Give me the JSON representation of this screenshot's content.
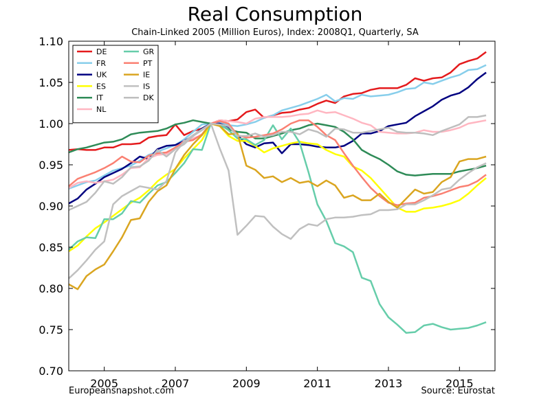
{
  "header": {
    "title": "Real Consumption",
    "subtitle": "Chain-Linked 2005 (Million Euros), Index: 2008Q1, Quarterly, SA"
  },
  "footer": {
    "left": "Europeansnapshot.com",
    "right": "Source: Eurostat"
  },
  "chart_data": {
    "type": "line",
    "title": "Real Consumption",
    "subtitle": "Chain-Linked 2005 (Million Euros), Index: 2008Q1, Quarterly, SA",
    "xlabel": "",
    "ylabel": "",
    "xlim": [
      "2004Q1",
      "2016Q1"
    ],
    "ylim": [
      0.7,
      1.1
    ],
    "x_ticks": [
      "2005",
      "2007",
      "2009",
      "2011",
      "2013",
      "2015"
    ],
    "y_ticks": [
      "0.70",
      "0.75",
      "0.80",
      "0.85",
      "0.90",
      "0.95",
      "1.00",
      "1.05",
      "1.10"
    ],
    "grid": false,
    "legend_position": "top-left",
    "x": [
      "2004Q1",
      "2004Q2",
      "2004Q3",
      "2004Q4",
      "2005Q1",
      "2005Q2",
      "2005Q3",
      "2005Q4",
      "2006Q1",
      "2006Q2",
      "2006Q3",
      "2006Q4",
      "2007Q1",
      "2007Q2",
      "2007Q3",
      "2007Q4",
      "2008Q1",
      "2008Q2",
      "2008Q3",
      "2008Q4",
      "2009Q1",
      "2009Q2",
      "2009Q3",
      "2009Q4",
      "2010Q1",
      "2010Q2",
      "2010Q3",
      "2010Q4",
      "2011Q1",
      "2011Q2",
      "2011Q3",
      "2011Q4",
      "2012Q1",
      "2012Q2",
      "2012Q3",
      "2012Q4",
      "2013Q1",
      "2013Q2",
      "2013Q3",
      "2013Q4",
      "2014Q1",
      "2014Q2",
      "2014Q3",
      "2014Q4",
      "2015Q1",
      "2015Q2",
      "2015Q3",
      "2015Q4"
    ],
    "series": [
      {
        "name": "DE",
        "color": "#e41a1c",
        "values": [
          0.968,
          0.969,
          0.968,
          0.968,
          0.971,
          0.971,
          0.975,
          0.975,
          0.976,
          0.983,
          0.985,
          0.986,
          0.999,
          0.986,
          0.991,
          0.994,
          1.0,
          1.004,
          1.003,
          1.005,
          1.014,
          1.017,
          1.007,
          1.01,
          1.013,
          1.014,
          1.017,
          1.019,
          1.024,
          1.028,
          1.025,
          1.033,
          1.036,
          1.037,
          1.041,
          1.043,
          1.043,
          1.043,
          1.047,
          1.055,
          1.052,
          1.055,
          1.056,
          1.062,
          1.072,
          1.076,
          1.079,
          1.087
        ]
      },
      {
        "name": "FR",
        "color": "#87ceeb",
        "values": [
          0.921,
          0.925,
          0.929,
          0.931,
          0.937,
          0.943,
          0.946,
          0.949,
          0.955,
          0.962,
          0.966,
          0.97,
          0.974,
          0.981,
          0.99,
          0.999,
          1.0,
          1.001,
          0.998,
          0.997,
          0.999,
          1.002,
          1.007,
          1.01,
          1.016,
          1.019,
          1.022,
          1.026,
          1.03,
          1.035,
          1.027,
          1.031,
          1.03,
          1.035,
          1.033,
          1.034,
          1.035,
          1.038,
          1.042,
          1.043,
          1.05,
          1.048,
          1.052,
          1.056,
          1.059,
          1.065,
          1.066,
          1.071
        ]
      },
      {
        "name": "UK",
        "color": "#000080",
        "values": [
          0.903,
          0.909,
          0.92,
          0.927,
          0.935,
          0.94,
          0.945,
          0.952,
          0.96,
          0.957,
          0.969,
          0.973,
          0.974,
          0.979,
          0.985,
          0.994,
          1.0,
          1.0,
          0.996,
          0.986,
          0.975,
          0.971,
          0.976,
          0.977,
          0.964,
          0.975,
          0.975,
          0.974,
          0.972,
          0.971,
          0.971,
          0.973,
          0.979,
          0.988,
          0.988,
          0.991,
          0.997,
          0.999,
          1.001,
          1.009,
          1.015,
          1.021,
          1.029,
          1.034,
          1.037,
          1.044,
          1.054,
          1.062
        ]
      },
      {
        "name": "ES",
        "color": "#ffff00",
        "values": [
          0.845,
          0.852,
          0.863,
          0.873,
          0.88,
          0.888,
          0.896,
          0.904,
          0.91,
          0.919,
          0.93,
          0.938,
          0.945,
          0.958,
          0.969,
          0.98,
          1.0,
          0.997,
          0.985,
          0.979,
          0.979,
          0.973,
          0.965,
          0.97,
          0.973,
          0.976,
          0.978,
          0.976,
          0.975,
          0.968,
          0.963,
          0.96,
          0.948,
          0.943,
          0.934,
          0.922,
          0.91,
          0.898,
          0.893,
          0.893,
          0.897,
          0.898,
          0.9,
          0.903,
          0.907,
          0.915,
          0.925,
          0.934
        ]
      },
      {
        "name": "IT",
        "color": "#2e8b57",
        "values": [
          0.965,
          0.969,
          0.971,
          0.974,
          0.977,
          0.978,
          0.981,
          0.987,
          0.989,
          0.99,
          0.991,
          0.994,
          0.999,
          1.001,
          1.004,
          1.002,
          1.0,
          0.998,
          0.993,
          0.99,
          0.989,
          0.982,
          0.982,
          0.985,
          0.988,
          0.992,
          0.994,
          0.998,
          1.0,
          0.998,
          0.996,
          0.99,
          0.981,
          0.968,
          0.962,
          0.957,
          0.95,
          0.942,
          0.938,
          0.937,
          0.938,
          0.939,
          0.939,
          0.939,
          0.942,
          0.944,
          0.946,
          0.949
        ]
      },
      {
        "name": "NL",
        "color": "#ffb6c1",
        "values": [
          0.922,
          0.928,
          0.93,
          0.928,
          0.93,
          0.932,
          0.938,
          0.946,
          0.947,
          0.958,
          0.962,
          0.963,
          0.97,
          0.979,
          0.982,
          0.986,
          1.0,
          1.004,
          1.003,
          1.002,
          1.0,
          1.006,
          1.008,
          1.008,
          1.008,
          1.009,
          1.011,
          1.012,
          1.016,
          1.013,
          1.014,
          1.01,
          1.006,
          1.001,
          0.998,
          0.99,
          0.989,
          0.988,
          0.988,
          0.989,
          0.992,
          0.99,
          0.99,
          0.992,
          0.995,
          1.0,
          1.002,
          1.004
        ]
      },
      {
        "name": "GR",
        "color": "#66cdaa",
        "values": [
          0.847,
          0.857,
          0.862,
          0.861,
          0.884,
          0.884,
          0.891,
          0.906,
          0.904,
          0.915,
          0.925,
          0.929,
          0.94,
          0.952,
          0.969,
          0.968,
          1.0,
          0.999,
          0.992,
          0.982,
          0.981,
          0.974,
          0.98,
          0.998,
          0.981,
          0.994,
          0.977,
          0.941,
          0.902,
          0.882,
          0.855,
          0.851,
          0.844,
          0.813,
          0.809,
          0.781,
          0.765,
          0.756,
          0.746,
          0.747,
          0.755,
          0.757,
          0.753,
          0.75,
          0.751,
          0.752,
          0.755,
          0.759
        ]
      },
      {
        "name": "PT",
        "color": "#fa8072",
        "values": [
          0.924,
          0.933,
          0.937,
          0.941,
          0.946,
          0.952,
          0.96,
          0.954,
          0.953,
          0.961,
          0.964,
          0.965,
          0.971,
          0.978,
          0.98,
          0.987,
          1.0,
          1.003,
          1.0,
          0.986,
          0.983,
          0.984,
          0.986,
          0.988,
          0.993,
          1.0,
          1.004,
          1.004,
          0.996,
          0.986,
          0.98,
          0.964,
          0.949,
          0.935,
          0.922,
          0.912,
          0.904,
          0.901,
          0.903,
          0.904,
          0.91,
          0.912,
          0.915,
          0.919,
          0.923,
          0.925,
          0.93,
          0.938
        ]
      },
      {
        "name": "IE",
        "color": "#daa520",
        "values": [
          0.805,
          0.799,
          0.815,
          0.823,
          0.829,
          0.845,
          0.862,
          0.883,
          0.885,
          0.905,
          0.918,
          0.925,
          0.945,
          0.962,
          0.975,
          0.986,
          1.0,
          0.997,
          0.987,
          0.988,
          0.949,
          0.944,
          0.934,
          0.936,
          0.929,
          0.934,
          0.928,
          0.93,
          0.924,
          0.931,
          0.925,
          0.91,
          0.913,
          0.907,
          0.907,
          0.915,
          0.905,
          0.898,
          0.909,
          0.92,
          0.915,
          0.917,
          0.929,
          0.935,
          0.954,
          0.957,
          0.957,
          0.96
        ]
      },
      {
        "name": "IS",
        "color": "#c0c0c0",
        "values": [
          0.812,
          0.822,
          0.834,
          0.847,
          0.857,
          0.902,
          0.912,
          0.918,
          0.924,
          0.922,
          0.92,
          0.93,
          0.965,
          0.978,
          0.986,
          0.993,
          1.0,
          0.97,
          0.943,
          0.865,
          0.876,
          0.888,
          0.887,
          0.875,
          0.866,
          0.86,
          0.872,
          0.878,
          0.876,
          0.884,
          0.886,
          0.886,
          0.887,
          0.889,
          0.89,
          0.895,
          0.895,
          0.896,
          0.902,
          0.902,
          0.907,
          0.913,
          0.92,
          0.922,
          0.932,
          0.94,
          0.947,
          0.952
        ]
      },
      {
        "name": "DK",
        "color": "#bebebe",
        "values": [
          0.895,
          0.9,
          0.905,
          0.916,
          0.93,
          0.927,
          0.935,
          0.947,
          0.948,
          0.955,
          0.968,
          0.96,
          0.969,
          0.975,
          0.985,
          0.992,
          1.0,
          0.999,
          0.997,
          0.985,
          0.985,
          0.988,
          0.984,
          0.986,
          0.99,
          0.99,
          0.987,
          0.993,
          0.99,
          0.984,
          0.994,
          0.993,
          0.989,
          0.989,
          0.991,
          0.993,
          0.995,
          0.99,
          0.989,
          0.989,
          0.988,
          0.986,
          0.991,
          0.995,
          0.999,
          1.008,
          1.008,
          1.01
        ]
      }
    ]
  }
}
